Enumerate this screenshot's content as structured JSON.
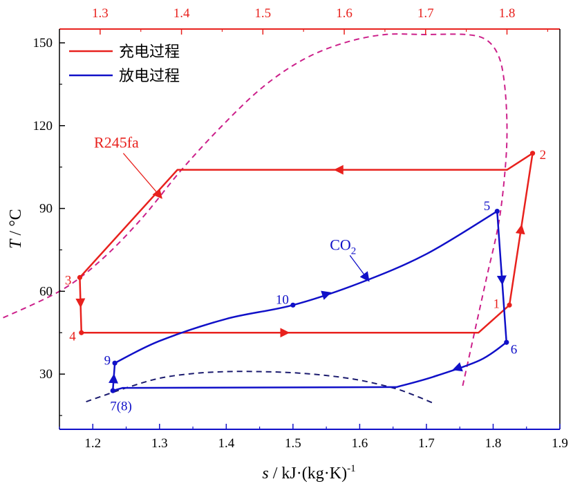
{
  "chart_data": {
    "type": "line",
    "title": "",
    "xlabel": {
      "var": "s",
      "rest": " / kJ·(kg·K)",
      "sup": "-1"
    },
    "ylabel": {
      "var": "T",
      "rest": " / °C"
    },
    "xlim": [
      1.15,
      1.9
    ],
    "ylim": [
      10,
      155
    ],
    "top_xlim": [
      1.25,
      1.865
    ],
    "x_ticks": [
      "1.2",
      "1.3",
      "1.4",
      "1.5",
      "1.6",
      "1.7",
      "1.8",
      "1.9"
    ],
    "top_x_ticks": [
      "1.3",
      "1.4",
      "1.5",
      "1.6",
      "1.7",
      "1.8"
    ],
    "y_ticks": [
      "30",
      "60",
      "90",
      "120",
      "150"
    ],
    "legend_position": "top-left",
    "legend": [
      {
        "label": "充电过程",
        "color": "#e8211d"
      },
      {
        "label": "放电过程",
        "color": "#1010c8"
      }
    ],
    "colors": {
      "charge": "#e8211d",
      "discharge": "#1010c8",
      "r245fa_dome": "#cc1f8a",
      "co2_dome": "#1a1a6e",
      "top_axis": "#e8211d",
      "bottom_axis": "#1010c8"
    },
    "series": [
      {
        "name": "充电过程",
        "axis": "top",
        "points": [
          {
            "s": 1.803,
            "T": 55,
            "label": "1"
          },
          {
            "s": 1.8315,
            "T": 110,
            "label": "2"
          },
          {
            "s": 1.8,
            "T": 104
          },
          {
            "s": 1.395,
            "T": 104
          },
          {
            "s": 1.275,
            "T": 65,
            "label": "3"
          },
          {
            "s": 1.277,
            "T": 45,
            "label": "4"
          },
          {
            "s": 1.765,
            "T": 45
          },
          {
            "s": 1.803,
            "T": 55
          }
        ]
      },
      {
        "name": "放电过程",
        "axis": "bottom",
        "points": [
          {
            "s": 1.23,
            "T": 24,
            "label": "7(8)"
          },
          {
            "s": 1.233,
            "T": 34,
            "label": "9"
          },
          {
            "s": 1.3,
            "T": 42
          },
          {
            "s": 1.4,
            "T": 50
          },
          {
            "s": 1.5,
            "T": 55,
            "label": "10"
          },
          {
            "s": 1.6,
            "T": 63
          },
          {
            "s": 1.7,
            "T": 73.5
          },
          {
            "s": 1.806,
            "T": 89,
            "label": "5"
          },
          {
            "s": 1.82,
            "T": 41.5,
            "label": "6"
          },
          {
            "s": 1.78,
            "T": 35
          },
          {
            "s": 1.71,
            "T": 29
          },
          {
            "s": 1.655,
            "T": 25.3
          },
          {
            "s": 1.245,
            "T": 25
          },
          {
            "s": 1.23,
            "T": 24
          }
        ]
      },
      {
        "name": "R245fa",
        "axis": "top",
        "dashed": true,
        "points": [
          {
            "s": 1.17,
            "T": 49
          },
          {
            "s": 1.25,
            "T": 60
          },
          {
            "s": 1.3,
            "T": 71
          },
          {
            "s": 1.35,
            "T": 86
          },
          {
            "s": 1.4,
            "T": 104
          },
          {
            "s": 1.45,
            "T": 120
          },
          {
            "s": 1.5,
            "T": 134
          },
          {
            "s": 1.55,
            "T": 144
          },
          {
            "s": 1.6,
            "T": 150
          },
          {
            "s": 1.65,
            "T": 153
          },
          {
            "s": 1.7,
            "T": 153
          },
          {
            "s": 1.75,
            "T": 153
          },
          {
            "s": 1.775,
            "T": 151
          },
          {
            "s": 1.79,
            "T": 145
          },
          {
            "s": 1.797,
            "T": 135
          },
          {
            "s": 1.8,
            "T": 120
          },
          {
            "s": 1.798,
            "T": 105
          },
          {
            "s": 1.79,
            "T": 85
          },
          {
            "s": 1.775,
            "T": 65
          },
          {
            "s": 1.76,
            "T": 45
          },
          {
            "s": 1.745,
            "T": 25
          }
        ]
      },
      {
        "name": "CO2",
        "axis": "bottom",
        "dashed": true,
        "points": [
          {
            "s": 1.19,
            "T": 20
          },
          {
            "s": 1.25,
            "T": 25
          },
          {
            "s": 1.3,
            "T": 28.5
          },
          {
            "s": 1.35,
            "T": 30.2
          },
          {
            "s": 1.4,
            "T": 30.9
          },
          {
            "s": 1.45,
            "T": 30.9
          },
          {
            "s": 1.5,
            "T": 30.5
          },
          {
            "s": 1.55,
            "T": 29.5
          },
          {
            "s": 1.6,
            "T": 27.8
          },
          {
            "s": 1.65,
            "T": 25
          },
          {
            "s": 1.68,
            "T": 22.5
          },
          {
            "s": 1.71,
            "T": 19.5
          }
        ]
      }
    ],
    "annotations": [
      {
        "text": "R245fa",
        "axis": "top",
        "s": 1.32,
        "T": 112,
        "arrow_to": {
          "s": 1.375,
          "T": 94
        },
        "color": "#e8211d"
      },
      {
        "text": "CO",
        "sub": "2",
        "axis": "bottom",
        "s": 1.575,
        "T": 75,
        "arrow_to": {
          "s": 1.613,
          "T": 64
        },
        "color": "#1010c8"
      }
    ]
  }
}
